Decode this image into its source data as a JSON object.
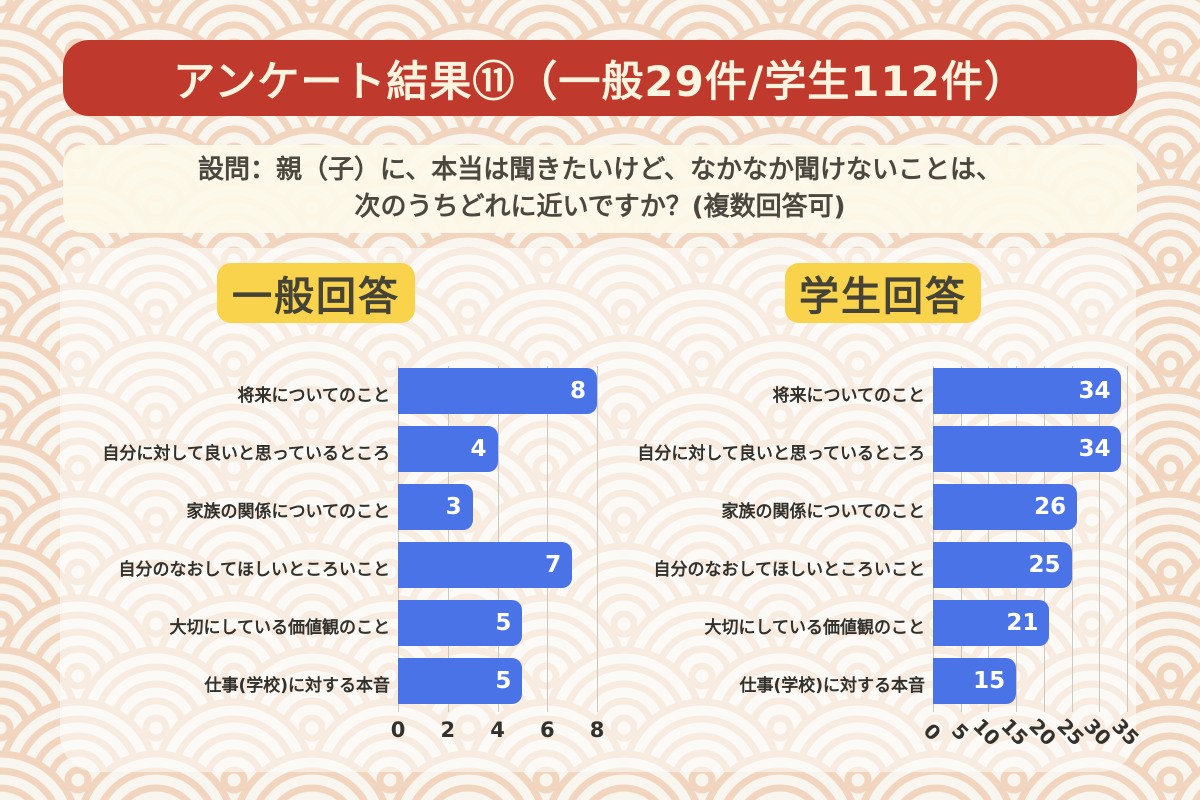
{
  "banner": {
    "title": "アンケート結果⑪（一般29件/学生112件）"
  },
  "question": {
    "line1": "設問：親（子）に、本当は聞きたいけど、なかなか聞けないことは、",
    "line2": "次のうちどれに近いですか？(複数回答可)"
  },
  "colors": {
    "banner_red": "#bf392c",
    "banner_text": "#fcf4df",
    "badge_yellow": "#fad34d",
    "bar_blue": "#4a73e8",
    "question_text": "#4c4840",
    "label_text": "#33312b",
    "gridline": "#cdc8be",
    "pattern_arc": "#f1d5be",
    "pattern_bg": "#f9f5ef"
  },
  "chart_data": [
    {
      "type": "bar",
      "orientation": "horizontal",
      "title": "一般回答",
      "categories": [
        "将来についてのこと",
        "自分に対して良いと思っているところ",
        "家族の関係についてのこと",
        "自分のなおしてほしいところいこと",
        "大切にしている価値観のこと",
        "仕事(学校)に対する本音"
      ],
      "values": [
        8,
        4,
        3,
        7,
        5,
        5
      ],
      "xlim": [
        0,
        8
      ],
      "xticks": [
        0,
        2,
        4,
        6,
        8
      ],
      "xtick_rotation": 0,
      "grid": true,
      "legend": false,
      "bar_color": "#4a73e8",
      "value_labels": "inside-right, white"
    },
    {
      "type": "bar",
      "orientation": "horizontal",
      "title": "学生回答",
      "categories": [
        "将来についてのこと",
        "自分に対して良いと思っているところ",
        "家族の関係についてのこと",
        "自分のなおしてほしいところいこと",
        "大切にしている価値観のこと",
        "仕事(学校)に対する本音"
      ],
      "values": [
        34,
        34,
        26,
        25,
        21,
        15
      ],
      "xlim": [
        0,
        35
      ],
      "xticks": [
        0,
        5,
        10,
        15,
        20,
        25,
        30,
        35
      ],
      "xtick_rotation": 45,
      "grid": true,
      "legend": false,
      "bar_color": "#4a73e8",
      "value_labels": "inside-right, white"
    }
  ]
}
